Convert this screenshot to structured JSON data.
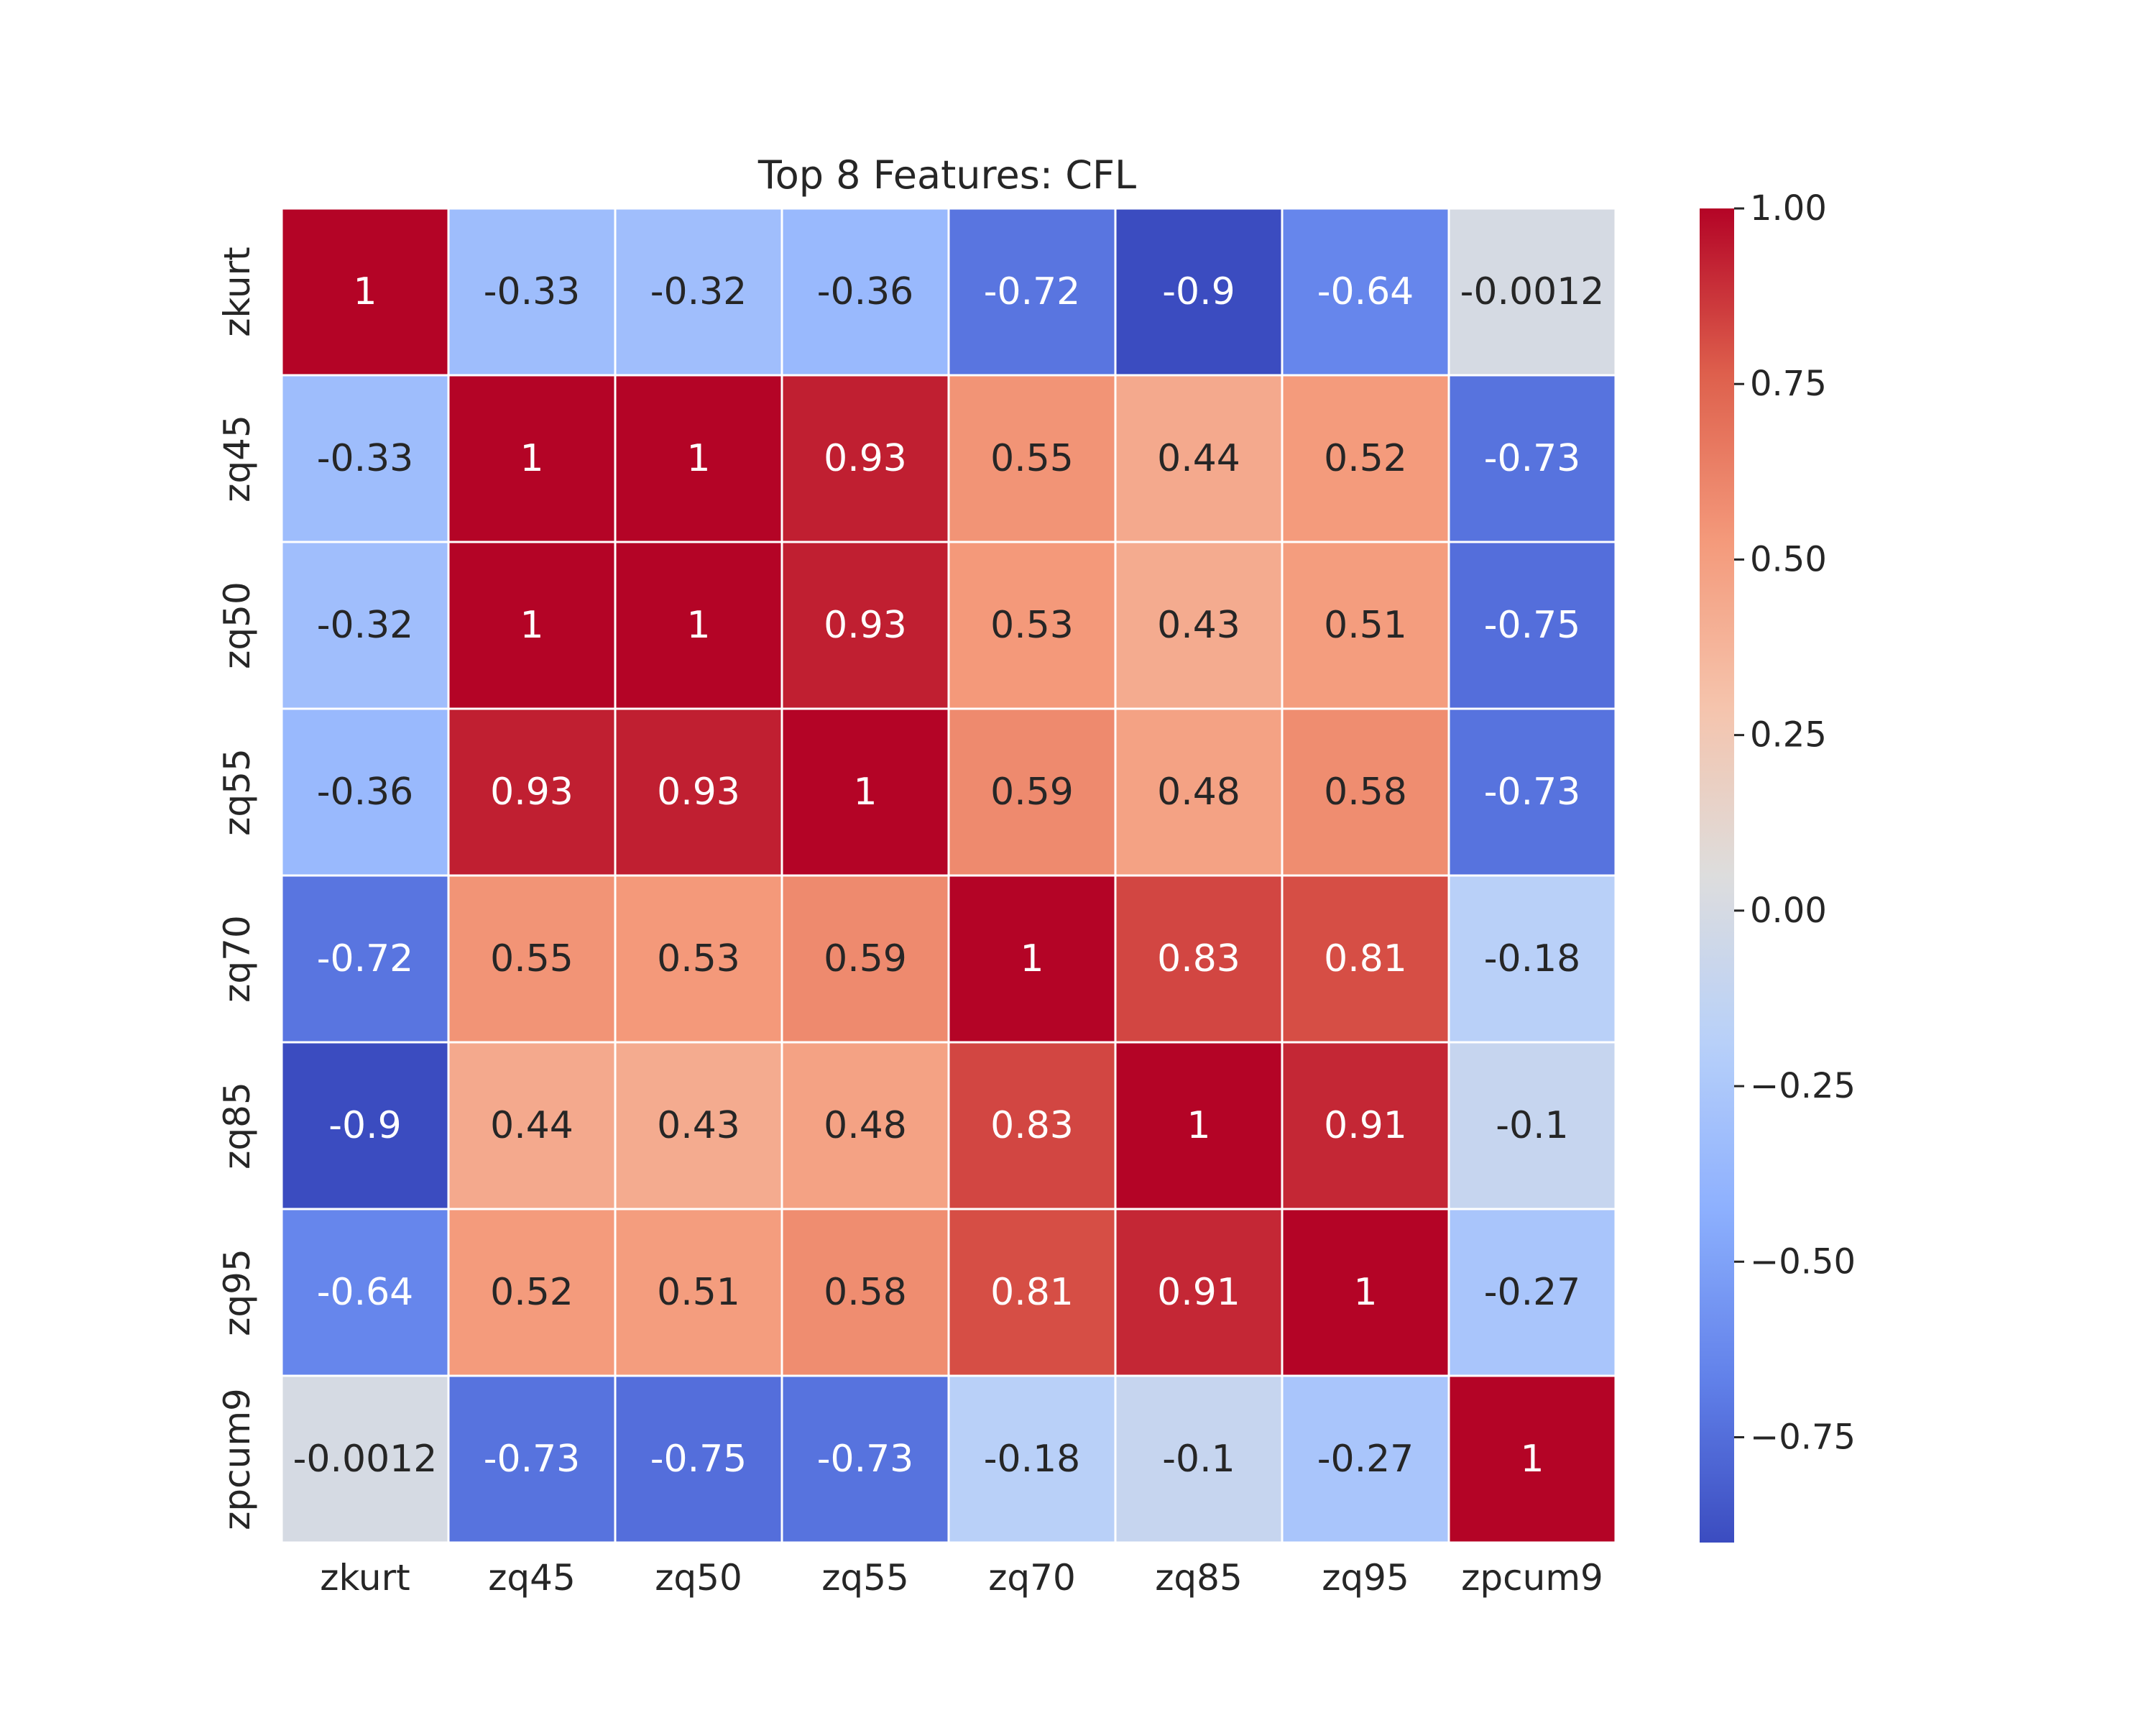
{
  "chart_data": {
    "type": "heatmap",
    "title": "Top 8 Features: CFL",
    "xlabel": "",
    "ylabel": "",
    "categories": [
      "zkurt",
      "zq45",
      "zq50",
      "zq55",
      "zq70",
      "zq85",
      "zq95",
      "zpcum9"
    ],
    "row_labels": [
      "zkurt",
      "zq45",
      "zq50",
      "zq55",
      "zq70",
      "zq85",
      "zq95",
      "zpcum9"
    ],
    "matrix": [
      [
        1,
        -0.33,
        -0.32,
        -0.36,
        -0.72,
        -0.9,
        -0.64,
        -0.0012
      ],
      [
        -0.33,
        1,
        1,
        0.93,
        0.55,
        0.44,
        0.52,
        -0.73
      ],
      [
        -0.32,
        1,
        1,
        0.93,
        0.53,
        0.43,
        0.51,
        -0.75
      ],
      [
        -0.36,
        0.93,
        0.93,
        1,
        0.59,
        0.48,
        0.58,
        -0.73
      ],
      [
        -0.72,
        0.55,
        0.53,
        0.59,
        1,
        0.83,
        0.81,
        -0.18
      ],
      [
        -0.9,
        0.44,
        0.43,
        0.48,
        0.83,
        1,
        0.91,
        -0.1
      ],
      [
        -0.64,
        0.52,
        0.51,
        0.58,
        0.81,
        0.91,
        1,
        -0.27
      ],
      [
        -0.0012,
        -0.73,
        -0.75,
        -0.73,
        -0.18,
        -0.1,
        -0.27,
        1
      ]
    ],
    "annotations": [
      [
        "1",
        "-0.33",
        "-0.32",
        "-0.36",
        "-0.72",
        "-0.9",
        "-0.64",
        "-0.0012"
      ],
      [
        "-0.33",
        "1",
        "1",
        "0.93",
        "0.55",
        "0.44",
        "0.52",
        "-0.73"
      ],
      [
        "-0.32",
        "1",
        "1",
        "0.93",
        "0.53",
        "0.43",
        "0.51",
        "-0.75"
      ],
      [
        "-0.36",
        "0.93",
        "0.93",
        "1",
        "0.59",
        "0.48",
        "0.58",
        "-0.73"
      ],
      [
        "-0.72",
        "0.55",
        "0.53",
        "0.59",
        "1",
        "0.83",
        "0.81",
        "-0.18"
      ],
      [
        "-0.9",
        "0.44",
        "0.43",
        "0.48",
        "0.83",
        "1",
        "0.91",
        "-0.1"
      ],
      [
        "-0.64",
        "0.52",
        "0.51",
        "0.58",
        "0.81",
        "0.91",
        "1",
        "-0.27"
      ],
      [
        "-0.0012",
        "-0.73",
        "-0.75",
        "-0.73",
        "-0.18",
        "-0.1",
        "-0.27",
        "1"
      ]
    ],
    "colorscale": "coolwarm",
    "vmin": -0.9,
    "vmax": 1,
    "colorbar_ticks": [
      1.0,
      0.75,
      0.5,
      0.25,
      0.0,
      -0.25,
      -0.5,
      -0.75
    ],
    "colorbar_tick_labels": [
      "1.00",
      "0.75",
      "0.50",
      "0.25",
      "0.00",
      "−0.25",
      "−0.50",
      "−0.75"
    ]
  }
}
